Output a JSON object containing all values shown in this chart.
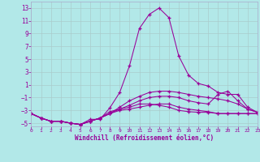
{
  "xlabel": "Windchill (Refroidissement éolien,°C)",
  "bg_color": "#b2e8e8",
  "grid_color": "#aacccc",
  "line_color": "#990099",
  "spine_color": "#aaaacc",
  "xlim": [
    0,
    23
  ],
  "ylim": [
    -5.5,
    14.0
  ],
  "yticks": [
    -5,
    -3,
    -1,
    1,
    3,
    5,
    7,
    9,
    11,
    13
  ],
  "xticks": [
    0,
    1,
    2,
    3,
    4,
    5,
    6,
    7,
    8,
    9,
    10,
    11,
    12,
    13,
    14,
    15,
    16,
    17,
    18,
    19,
    20,
    21,
    22,
    23
  ],
  "series": [
    {
      "x": [
        0,
        1,
        2,
        3,
        4,
        5,
        6,
        7,
        8,
        9,
        10,
        11,
        12,
        13,
        14,
        15,
        16,
        17,
        18,
        19,
        20,
        21,
        22,
        23
      ],
      "y": [
        -3.5,
        -4.2,
        -4.7,
        -4.7,
        -5.0,
        -5.2,
        -4.4,
        -4.4,
        -2.6,
        -0.2,
        4.0,
        9.8,
        12.0,
        13.0,
        11.5,
        5.5,
        2.5,
        1.2,
        0.8,
        -0.2,
        -0.5,
        -0.5,
        -2.5,
        -3.3
      ]
    },
    {
      "x": [
        0,
        1,
        2,
        3,
        4,
        5,
        6,
        7,
        8,
        9,
        10,
        11,
        12,
        13,
        14,
        15,
        16,
        17,
        18,
        19,
        20,
        21,
        22,
        23
      ],
      "y": [
        -3.5,
        -4.2,
        -4.7,
        -4.7,
        -5.0,
        -5.2,
        -4.7,
        -4.2,
        -3.2,
        -2.8,
        -2.5,
        -2.0,
        -2.0,
        -2.2,
        -2.5,
        -3.0,
        -3.2,
        -3.3,
        -3.3,
        -3.5,
        -3.5,
        -3.5,
        -3.5,
        -3.5
      ]
    },
    {
      "x": [
        0,
        1,
        2,
        3,
        4,
        5,
        6,
        7,
        8,
        9,
        10,
        11,
        12,
        13,
        14,
        15,
        16,
        17,
        18,
        19,
        20,
        21,
        22,
        23
      ],
      "y": [
        -3.5,
        -4.2,
        -4.7,
        -4.7,
        -5.0,
        -5.2,
        -4.7,
        -4.2,
        -3.5,
        -3.0,
        -2.8,
        -2.5,
        -2.2,
        -2.0,
        -2.0,
        -2.5,
        -2.8,
        -3.0,
        -3.2,
        -3.5,
        -3.5,
        -3.5,
        -3.5,
        -3.5
      ]
    },
    {
      "x": [
        0,
        1,
        2,
        3,
        4,
        5,
        6,
        7,
        8,
        9,
        10,
        11,
        12,
        13,
        14,
        15,
        16,
        17,
        18,
        19,
        20,
        21,
        22,
        23
      ],
      "y": [
        -3.5,
        -4.2,
        -4.7,
        -4.7,
        -5.0,
        -5.2,
        -4.7,
        -4.2,
        -3.5,
        -2.8,
        -2.2,
        -1.5,
        -1.0,
        -0.8,
        -0.8,
        -1.0,
        -1.5,
        -1.8,
        -2.0,
        -0.5,
        0.0,
        -1.5,
        -2.8,
        -3.3
      ]
    },
    {
      "x": [
        0,
        1,
        2,
        3,
        4,
        5,
        6,
        7,
        8,
        9,
        10,
        11,
        12,
        13,
        14,
        15,
        16,
        17,
        18,
        19,
        20,
        21,
        22,
        23
      ],
      "y": [
        -3.5,
        -4.2,
        -4.7,
        -4.7,
        -5.0,
        -5.2,
        -4.7,
        -4.2,
        -3.5,
        -2.5,
        -1.5,
        -0.8,
        -0.2,
        0.0,
        0.0,
        -0.2,
        -0.5,
        -0.8,
        -1.0,
        -1.2,
        -1.5,
        -2.0,
        -2.8,
        -3.3
      ]
    }
  ]
}
